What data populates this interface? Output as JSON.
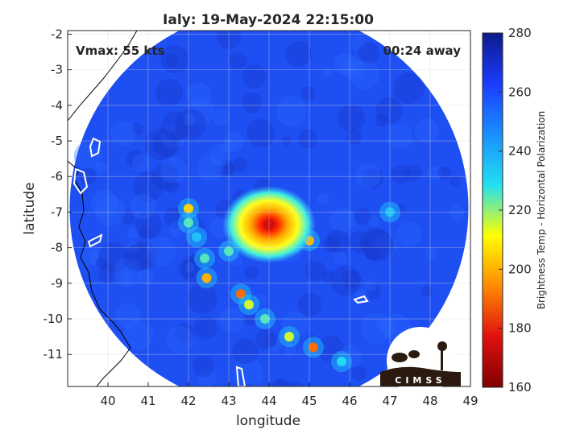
{
  "chart_data": {
    "type": "heatmap",
    "title": "Ialy: 19-May-2024 22:15:00",
    "xlabel": "longitude",
    "ylabel": "latitude",
    "xlim": [
      39,
      49
    ],
    "ylim": [
      -11.9,
      -1.9
    ],
    "x_ticks": [
      "40",
      "41",
      "42",
      "43",
      "44",
      "45",
      "46",
      "47",
      "48",
      "49"
    ],
    "y_ticks": [
      "-2",
      "-3",
      "-4",
      "-5",
      "-6",
      "-7",
      "-8",
      "-9",
      "-10",
      "-11"
    ],
    "grid": true,
    "annotations": {
      "vmax": "Vmax: 55 kts",
      "away": "00:24 away"
    },
    "colorbar": {
      "label": "Brightness Temp - Horizontal Polarization",
      "range": [
        160,
        280
      ],
      "ticks": [
        "280",
        "260",
        "240",
        "220",
        "200",
        "180",
        "160"
      ],
      "colors": [
        "#0d1a8a",
        "#1a3cff",
        "#1a8fff",
        "#22e0f0",
        "#ffff00",
        "#ff8a00",
        "#e01010",
        "#800000"
      ]
    },
    "swath": {
      "center_lon": 44.0,
      "center_lat": -6.9,
      "radius_deg": 4.95
    },
    "storm_center": {
      "lon": 44.0,
      "lat": -7.35,
      "min_temp": 175
    },
    "rainband_points": [
      {
        "lon": 42.0,
        "lat": -6.9,
        "temp": 205
      },
      {
        "lon": 42.0,
        "lat": -7.3,
        "temp": 225
      },
      {
        "lon": 42.2,
        "lat": -7.7,
        "temp": 235
      },
      {
        "lon": 42.4,
        "lat": -8.3,
        "temp": 225
      },
      {
        "lon": 42.45,
        "lat": -8.85,
        "temp": 200
      },
      {
        "lon": 43.3,
        "lat": -9.3,
        "temp": 190
      },
      {
        "lon": 43.5,
        "lat": -9.6,
        "temp": 215
      },
      {
        "lon": 43.9,
        "lat": -10.0,
        "temp": 225
      },
      {
        "lon": 44.5,
        "lat": -10.5,
        "temp": 215
      },
      {
        "lon": 45.1,
        "lat": -10.8,
        "temp": 190
      },
      {
        "lon": 45.8,
        "lat": -11.2,
        "temp": 230
      },
      {
        "lon": 45.0,
        "lat": -7.8,
        "temp": 200
      },
      {
        "lon": 44.6,
        "lat": -7.85,
        "temp": 205
      },
      {
        "lon": 43.0,
        "lat": -8.1,
        "temp": 225
      },
      {
        "lon": 47.0,
        "lat": -7.0,
        "temp": 235
      }
    ],
    "logo": {
      "text": "CIMSS"
    }
  }
}
